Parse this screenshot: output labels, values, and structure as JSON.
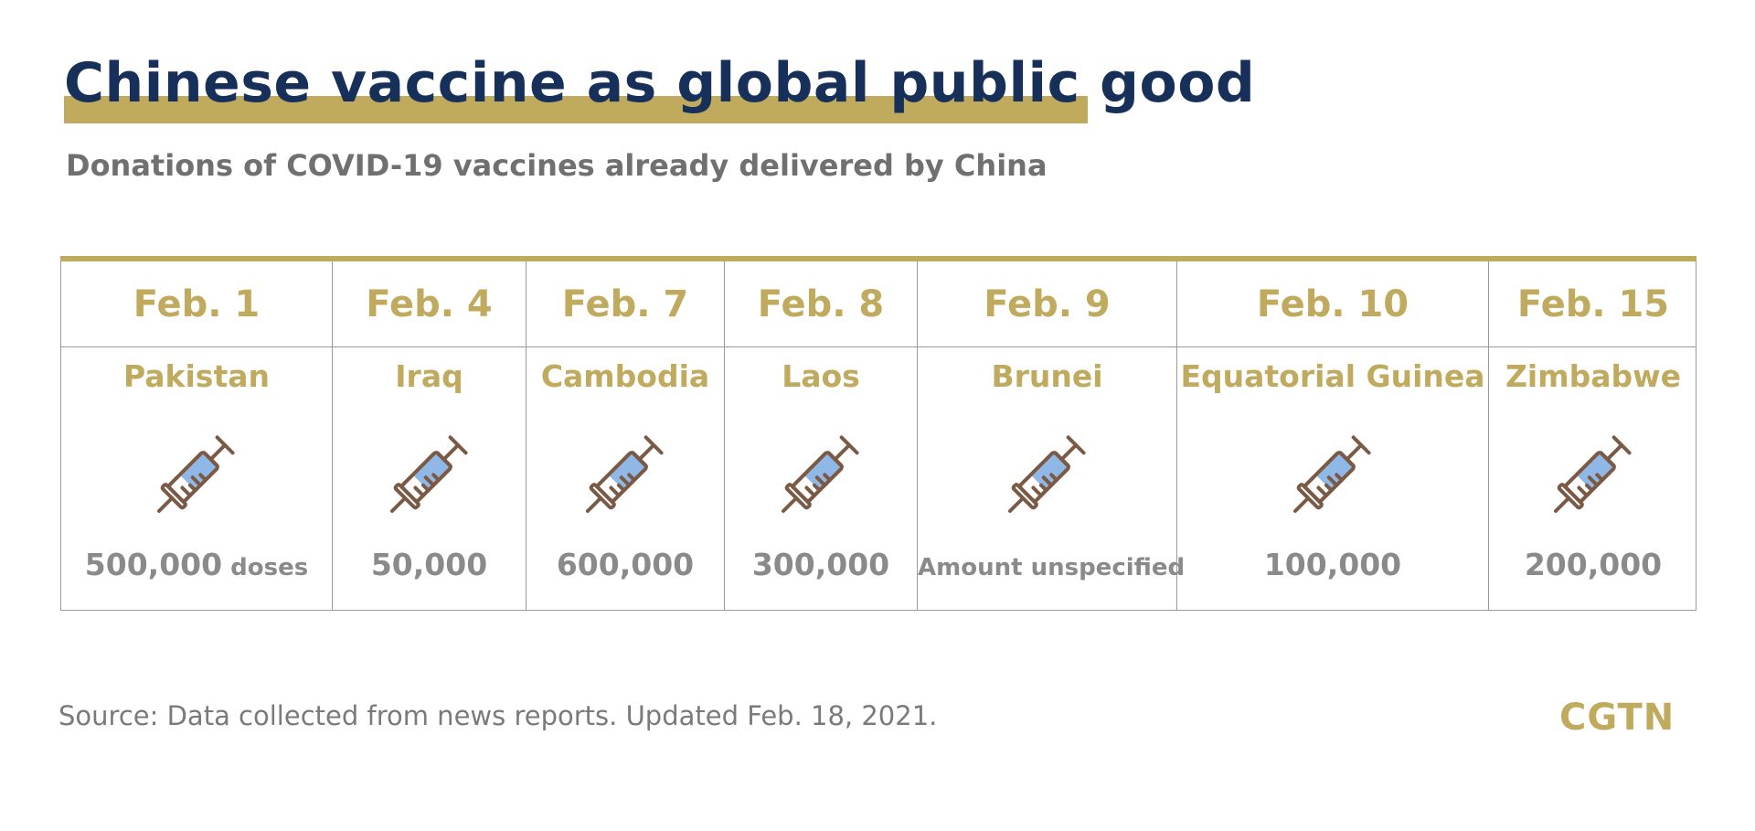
{
  "title": "Chinese vaccine as global public good",
  "subtitle": "Donations of COVID-19 vaccines already delivered by China",
  "source": "Source: Data collected from news reports. Updated Feb. 18, 2021.",
  "logo": "CGTN",
  "colors": {
    "gold": "#bfaa5e",
    "navy": "#17305a",
    "gray": "#8a8a8a",
    "syringe_fill": "#8fb8e6",
    "syringe_stroke": "#7b5a45"
  },
  "icon": "syringe-icon",
  "chart_data": {
    "type": "table",
    "columns": [
      "date",
      "country",
      "doses"
    ],
    "rows": [
      {
        "date": "Feb. 1",
        "country": "Pakistan",
        "amount": "500,000",
        "unit": "doses",
        "doses": 500000
      },
      {
        "date": "Feb. 4",
        "country": "Iraq",
        "amount": "50,000",
        "doses": 50000
      },
      {
        "date": "Feb. 7",
        "country": "Cambodia",
        "amount": "600,000",
        "doses": 600000
      },
      {
        "date": "Feb. 8",
        "country": "Laos",
        "amount": "300,000",
        "doses": 300000
      },
      {
        "date": "Feb. 9",
        "country": "Brunei",
        "amount": "Amount unspecified",
        "doses": null
      },
      {
        "date": "Feb. 10",
        "country": "Equatorial Guinea",
        "amount": "100,000",
        "doses": 100000
      },
      {
        "date": "Feb. 15",
        "country": "Zimbabwe",
        "amount": "200,000",
        "doses": 200000
      }
    ]
  }
}
